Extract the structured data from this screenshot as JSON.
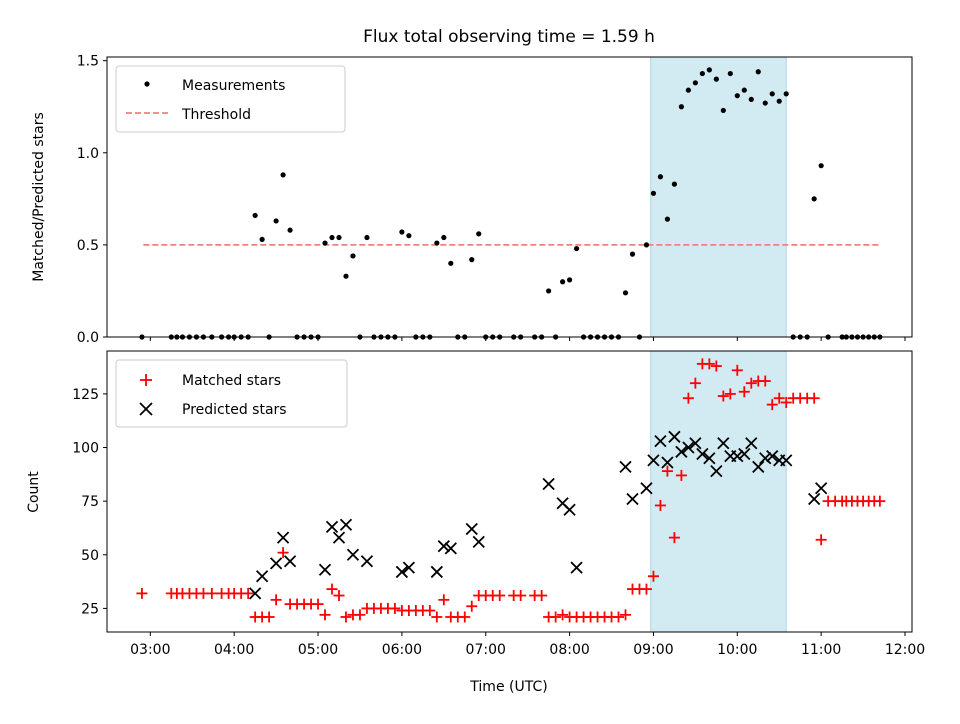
{
  "title": "Flux total observing time = 1.59 h",
  "colors": {
    "highlight": "#add8e6",
    "threshold": "#f08080",
    "measurement": "#000000",
    "matched": "#ff0000",
    "predicted": "#000000"
  },
  "chart_data": [
    {
      "type": "scatter",
      "panel": "top",
      "ylabel": "Matched/Predicted stars",
      "xlim": [
        "02:29",
        "12:05"
      ],
      "ylim": [
        0,
        1.52
      ],
      "yticks": [
        0,
        0.5,
        1.0,
        1.5
      ],
      "ytick_labels": [
        "0.0",
        "0.5",
        "1.0",
        "1.5"
      ],
      "legend_position": "upper-left",
      "shaded_region": [
        "08:58",
        "10:35"
      ],
      "threshold": {
        "name": "Threshold",
        "value": 0.5,
        "x_range": [
          "02:55",
          "11:42"
        ],
        "style": "dashed"
      },
      "series": [
        {
          "name": "Measurements",
          "points": [
            [
              "02:54",
              0
            ],
            [
              "03:15",
              0
            ],
            [
              "03:19",
              0
            ],
            [
              "03:23",
              0
            ],
            [
              "03:28",
              0
            ],
            [
              "03:33",
              0
            ],
            [
              "03:38",
              0
            ],
            [
              "03:44",
              0
            ],
            [
              "03:51",
              0
            ],
            [
              "03:56",
              0
            ],
            [
              "04:00",
              0
            ],
            [
              "04:05",
              0
            ],
            [
              "04:10",
              0
            ],
            [
              "04:15",
              0.66
            ],
            [
              "04:20",
              0.53
            ],
            [
              "04:25",
              0
            ],
            [
              "04:30",
              0.63
            ],
            [
              "04:35",
              0.88
            ],
            [
              "04:40",
              0.58
            ],
            [
              "04:45",
              0
            ],
            [
              "04:50",
              0
            ],
            [
              "04:55",
              0
            ],
            [
              "05:00",
              0
            ],
            [
              "05:05",
              0.51
            ],
            [
              "05:10",
              0.54
            ],
            [
              "05:15",
              0.54
            ],
            [
              "05:20",
              0.33
            ],
            [
              "05:25",
              0.44
            ],
            [
              "05:30",
              0
            ],
            [
              "05:35",
              0.54
            ],
            [
              "05:40",
              0
            ],
            [
              "05:45",
              0
            ],
            [
              "05:50",
              0
            ],
            [
              "05:55",
              0
            ],
            [
              "06:00",
              0.57
            ],
            [
              "06:05",
              0.55
            ],
            [
              "06:10",
              0
            ],
            [
              "06:15",
              0
            ],
            [
              "06:20",
              0
            ],
            [
              "06:25",
              0.51
            ],
            [
              "06:30",
              0.54
            ],
            [
              "06:35",
              0.4
            ],
            [
              "06:40",
              0
            ],
            [
              "06:45",
              0
            ],
            [
              "06:50",
              0.42
            ],
            [
              "06:55",
              0.56
            ],
            [
              "07:00",
              0
            ],
            [
              "07:05",
              0
            ],
            [
              "07:10",
              0
            ],
            [
              "07:20",
              0
            ],
            [
              "07:25",
              0
            ],
            [
              "07:35",
              0
            ],
            [
              "07:40",
              0
            ],
            [
              "07:45",
              0.25
            ],
            [
              "07:50",
              0
            ],
            [
              "07:55",
              0.3
            ],
            [
              "08:00",
              0.31
            ],
            [
              "08:05",
              0.48
            ],
            [
              "08:10",
              0
            ],
            [
              "08:15",
              0
            ],
            [
              "08:20",
              0
            ],
            [
              "08:25",
              0
            ],
            [
              "08:30",
              0
            ],
            [
              "08:35",
              0
            ],
            [
              "08:40",
              0.24
            ],
            [
              "08:45",
              0.45
            ],
            [
              "08:50",
              0
            ],
            [
              "08:55",
              0.5
            ],
            [
              "09:00",
              0.78
            ],
            [
              "09:05",
              0.87
            ],
            [
              "09:10",
              0.64
            ],
            [
              "09:15",
              0.83
            ],
            [
              "09:20",
              1.25
            ],
            [
              "09:25",
              1.34
            ],
            [
              "09:30",
              1.38
            ],
            [
              "09:35",
              1.43
            ],
            [
              "09:40",
              1.45
            ],
            [
              "09:45",
              1.4
            ],
            [
              "09:50",
              1.23
            ],
            [
              "09:55",
              1.43
            ],
            [
              "10:00",
              1.31
            ],
            [
              "10:05",
              1.34
            ],
            [
              "10:10",
              1.29
            ],
            [
              "10:15",
              1.44
            ],
            [
              "10:20",
              1.27
            ],
            [
              "10:25",
              1.32
            ],
            [
              "10:30",
              1.28
            ],
            [
              "10:35",
              1.32
            ],
            [
              "10:40",
              0
            ],
            [
              "10:45",
              0
            ],
            [
              "10:50",
              0
            ],
            [
              "10:55",
              0.75
            ],
            [
              "11:00",
              0.93
            ],
            [
              "11:05",
              0
            ],
            [
              "11:15",
              0
            ],
            [
              "11:18",
              0
            ],
            [
              "11:22",
              0
            ],
            [
              "11:26",
              0
            ],
            [
              "11:30",
              0
            ],
            [
              "11:34",
              0
            ],
            [
              "11:38",
              0
            ],
            [
              "11:42",
              0
            ]
          ]
        }
      ]
    },
    {
      "type": "scatter",
      "panel": "bottom",
      "xlabel": "Time (UTC)",
      "ylabel": "Count",
      "xlim": [
        "02:29",
        "12:05"
      ],
      "ylim": [
        14,
        145
      ],
      "yticks": [
        25,
        50,
        75,
        100,
        125
      ],
      "ytick_labels": [
        "25",
        "50",
        "75",
        "100",
        "125"
      ],
      "xticks": [
        "03:00",
        "04:00",
        "05:00",
        "06:00",
        "07:00",
        "08:00",
        "09:00",
        "10:00",
        "11:00",
        "12:00"
      ],
      "legend_position": "upper-left",
      "shaded_region": [
        "08:58",
        "10:35"
      ],
      "series": [
        {
          "name": "Matched stars",
          "marker": "plus",
          "points": [
            [
              "02:54",
              32
            ],
            [
              "03:15",
              32
            ],
            [
              "03:19",
              32
            ],
            [
              "03:23",
              32
            ],
            [
              "03:28",
              32
            ],
            [
              "03:33",
              32
            ],
            [
              "03:38",
              32
            ],
            [
              "03:44",
              32
            ],
            [
              "03:51",
              32
            ],
            [
              "03:56",
              32
            ],
            [
              "04:00",
              32
            ],
            [
              "04:05",
              32
            ],
            [
              "04:10",
              32
            ],
            [
              "04:15",
              21
            ],
            [
              "04:20",
              21
            ],
            [
              "04:25",
              21
            ],
            [
              "04:30",
              29
            ],
            [
              "04:35",
              51
            ],
            [
              "04:40",
              27
            ],
            [
              "04:45",
              27
            ],
            [
              "04:50",
              27
            ],
            [
              "04:55",
              27
            ],
            [
              "05:00",
              27
            ],
            [
              "05:05",
              22
            ],
            [
              "05:10",
              34
            ],
            [
              "05:15",
              31
            ],
            [
              "05:20",
              21
            ],
            [
              "05:25",
              22
            ],
            [
              "05:30",
              22
            ],
            [
              "05:35",
              25
            ],
            [
              "05:40",
              25
            ],
            [
              "05:45",
              25
            ],
            [
              "05:50",
              25
            ],
            [
              "05:55",
              25
            ],
            [
              "06:00",
              24
            ],
            [
              "06:05",
              24
            ],
            [
              "06:10",
              24
            ],
            [
              "06:15",
              24
            ],
            [
              "06:20",
              24
            ],
            [
              "06:25",
              21
            ],
            [
              "06:30",
              29
            ],
            [
              "06:35",
              21
            ],
            [
              "06:40",
              21
            ],
            [
              "06:45",
              21
            ],
            [
              "06:50",
              26
            ],
            [
              "06:55",
              31
            ],
            [
              "07:00",
              31
            ],
            [
              "07:05",
              31
            ],
            [
              "07:10",
              31
            ],
            [
              "07:20",
              31
            ],
            [
              "07:25",
              31
            ],
            [
              "07:35",
              31
            ],
            [
              "07:40",
              31
            ],
            [
              "07:45",
              21
            ],
            [
              "07:50",
              21
            ],
            [
              "07:55",
              22
            ],
            [
              "08:00",
              21
            ],
            [
              "08:05",
              21
            ],
            [
              "08:10",
              21
            ],
            [
              "08:15",
              21
            ],
            [
              "08:20",
              21
            ],
            [
              "08:25",
              21
            ],
            [
              "08:30",
              21
            ],
            [
              "08:35",
              21
            ],
            [
              "08:40",
              22
            ],
            [
              "08:45",
              34
            ],
            [
              "08:50",
              34
            ],
            [
              "08:55",
              34
            ],
            [
              "09:00",
              40
            ],
            [
              "09:05",
              73
            ],
            [
              "09:10",
              89
            ],
            [
              "09:15",
              58
            ],
            [
              "09:20",
              87
            ],
            [
              "09:25",
              123
            ],
            [
              "09:30",
              130
            ],
            [
              "09:35",
              139
            ],
            [
              "09:40",
              139
            ],
            [
              "09:45",
              138
            ],
            [
              "09:50",
              124
            ],
            [
              "09:55",
              125
            ],
            [
              "10:00",
              136
            ],
            [
              "10:05",
              126
            ],
            [
              "10:10",
              130
            ],
            [
              "10:15",
              131
            ],
            [
              "10:20",
              131
            ],
            [
              "10:25",
              120
            ],
            [
              "10:30",
              123
            ],
            [
              "10:35",
              121
            ],
            [
              "10:40",
              123
            ],
            [
              "10:45",
              123
            ],
            [
              "10:50",
              123
            ],
            [
              "10:55",
              123
            ],
            [
              "11:00",
              57
            ],
            [
              "11:05",
              75
            ],
            [
              "11:10",
              75
            ],
            [
              "11:15",
              75
            ],
            [
              "11:18",
              75
            ],
            [
              "11:22",
              75
            ],
            [
              "11:26",
              75
            ],
            [
              "11:30",
              75
            ],
            [
              "11:34",
              75
            ],
            [
              "11:38",
              75
            ],
            [
              "11:42",
              75
            ]
          ]
        },
        {
          "name": "Predicted stars",
          "marker": "x",
          "points": [
            [
              "04:15",
              32
            ],
            [
              "04:20",
              40
            ],
            [
              "04:30",
              46
            ],
            [
              "04:35",
              58
            ],
            [
              "04:40",
              47
            ],
            [
              "05:05",
              43
            ],
            [
              "05:10",
              63
            ],
            [
              "05:15",
              58
            ],
            [
              "05:20",
              64
            ],
            [
              "05:25",
              50
            ],
            [
              "05:35",
              47
            ],
            [
              "06:00",
              42
            ],
            [
              "06:05",
              44
            ],
            [
              "06:25",
              42
            ],
            [
              "06:30",
              54
            ],
            [
              "06:35",
              53
            ],
            [
              "06:50",
              62
            ],
            [
              "06:55",
              56
            ],
            [
              "07:45",
              83
            ],
            [
              "07:55",
              74
            ],
            [
              "08:00",
              71
            ],
            [
              "08:05",
              44
            ],
            [
              "08:40",
              91
            ],
            [
              "08:45",
              76
            ],
            [
              "08:55",
              81
            ],
            [
              "09:00",
              94
            ],
            [
              "09:05",
              103
            ],
            [
              "09:10",
              93
            ],
            [
              "09:15",
              105
            ],
            [
              "09:20",
              98
            ],
            [
              "09:25",
              100
            ],
            [
              "09:30",
              102
            ],
            [
              "09:35",
              97
            ],
            [
              "09:40",
              95
            ],
            [
              "09:45",
              89
            ],
            [
              "09:50",
              102
            ],
            [
              "09:55",
              96
            ],
            [
              "10:00",
              96
            ],
            [
              "10:05",
              97
            ],
            [
              "10:10",
              102
            ],
            [
              "10:15",
              91
            ],
            [
              "10:20",
              95
            ],
            [
              "10:25",
              96
            ],
            [
              "10:30",
              94
            ],
            [
              "10:35",
              94
            ],
            [
              "10:55",
              76
            ],
            [
              "11:00",
              81
            ]
          ]
        }
      ]
    }
  ],
  "legend": {
    "top": [
      {
        "label": "Measurements"
      },
      {
        "label": "Threshold"
      }
    ],
    "bottom": [
      {
        "label": "Matched stars"
      },
      {
        "label": "Predicted stars"
      }
    ]
  }
}
